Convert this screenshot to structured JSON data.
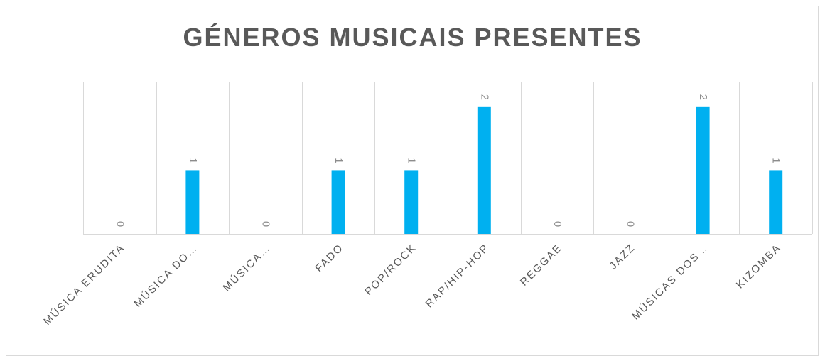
{
  "chart_data": {
    "type": "bar",
    "title": "GÉNEROS MUSICAIS PRESENTES",
    "categories": [
      "MÚSICA ERUDITA",
      "MÚSICA DO…",
      "MÚSICA…",
      "FADO",
      "POP/ROCK",
      "RAP/HIP-HOP",
      "REGGAE",
      "JAZZ",
      "MÚSICAS DOS…",
      "KIZOMBA"
    ],
    "values": [
      0,
      1,
      0,
      1,
      1,
      2,
      0,
      0,
      2,
      1
    ],
    "data_labels": [
      "0",
      "1",
      "0",
      "1",
      "1",
      "2",
      "0",
      "0",
      "2",
      "1"
    ],
    "ylim": [
      0,
      2.4
    ],
    "grid": "vertical",
    "bar_color": "#00b0f0"
  }
}
